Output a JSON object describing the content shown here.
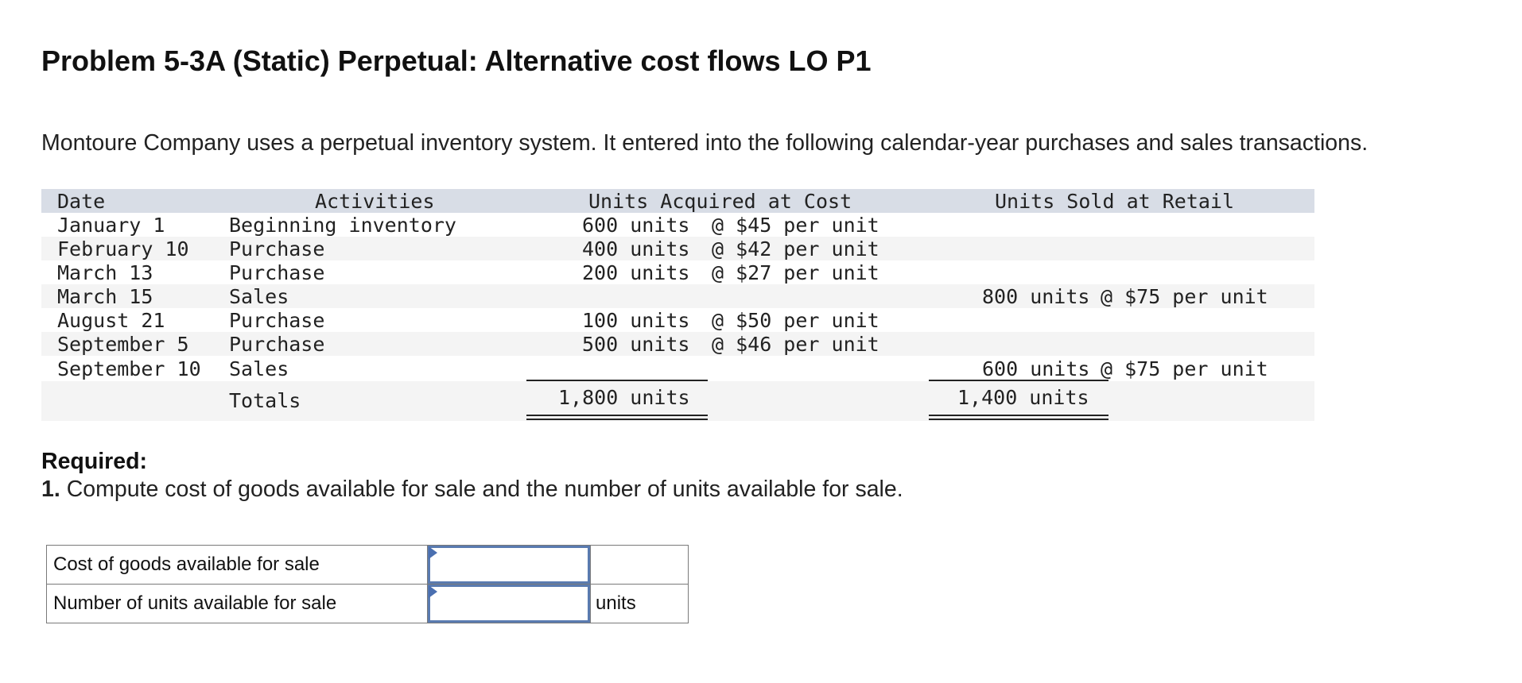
{
  "title": "Problem 5-3A (Static) Perpetual: Alternative cost flows LO P1",
  "intro": "Montoure Company uses a perpetual inventory system. It entered into the following calendar-year purchases and sales transactions.",
  "table": {
    "headers": {
      "date": "Date",
      "activities": "Activities",
      "acquired": "Units Acquired at Cost",
      "sold": "Units Sold at Retail"
    },
    "rows": [
      {
        "date": "January 1",
        "activity": "Beginning inventory",
        "acq_units": "600 units",
        "acq_cost": "@ $45 per unit",
        "sold_units": "",
        "sold_price": ""
      },
      {
        "date": "February 10",
        "activity": "Purchase",
        "acq_units": "400 units",
        "acq_cost": "@ $42 per unit",
        "sold_units": "",
        "sold_price": ""
      },
      {
        "date": "March 13",
        "activity": "Purchase",
        "acq_units": "200 units",
        "acq_cost": "@ $27 per unit",
        "sold_units": "",
        "sold_price": ""
      },
      {
        "date": "March 15",
        "activity": "Sales",
        "acq_units": "",
        "acq_cost": "",
        "sold_units": "800 units",
        "sold_price": "@ $75 per unit"
      },
      {
        "date": "August 21",
        "activity": "Purchase",
        "acq_units": "100 units",
        "acq_cost": "@ $50 per unit",
        "sold_units": "",
        "sold_price": ""
      },
      {
        "date": "September 5",
        "activity": "Purchase",
        "acq_units": "500 units",
        "acq_cost": "@ $46 per unit",
        "sold_units": "",
        "sold_price": ""
      },
      {
        "date": "September 10",
        "activity": "Sales",
        "acq_units": "",
        "acq_cost": "",
        "sold_units": "600 units",
        "sold_price": "@ $75 per unit"
      }
    ],
    "totals": {
      "label": "Totals",
      "acquired": "1,800 units",
      "sold": "1,400 units"
    }
  },
  "required": {
    "heading": "Required:",
    "number": "1.",
    "text": "Compute cost of goods available for sale and the number of units available for sale."
  },
  "answer": {
    "rows": [
      {
        "label": "Cost of goods available for sale",
        "value": "",
        "unit": ""
      },
      {
        "label": "Number of units available for sale",
        "value": "",
        "unit": "units"
      }
    ]
  },
  "colors": {
    "header_bg": "#d8dde6",
    "stripe_bg": "#f4f4f4",
    "input_border": "#5a7bb0"
  }
}
